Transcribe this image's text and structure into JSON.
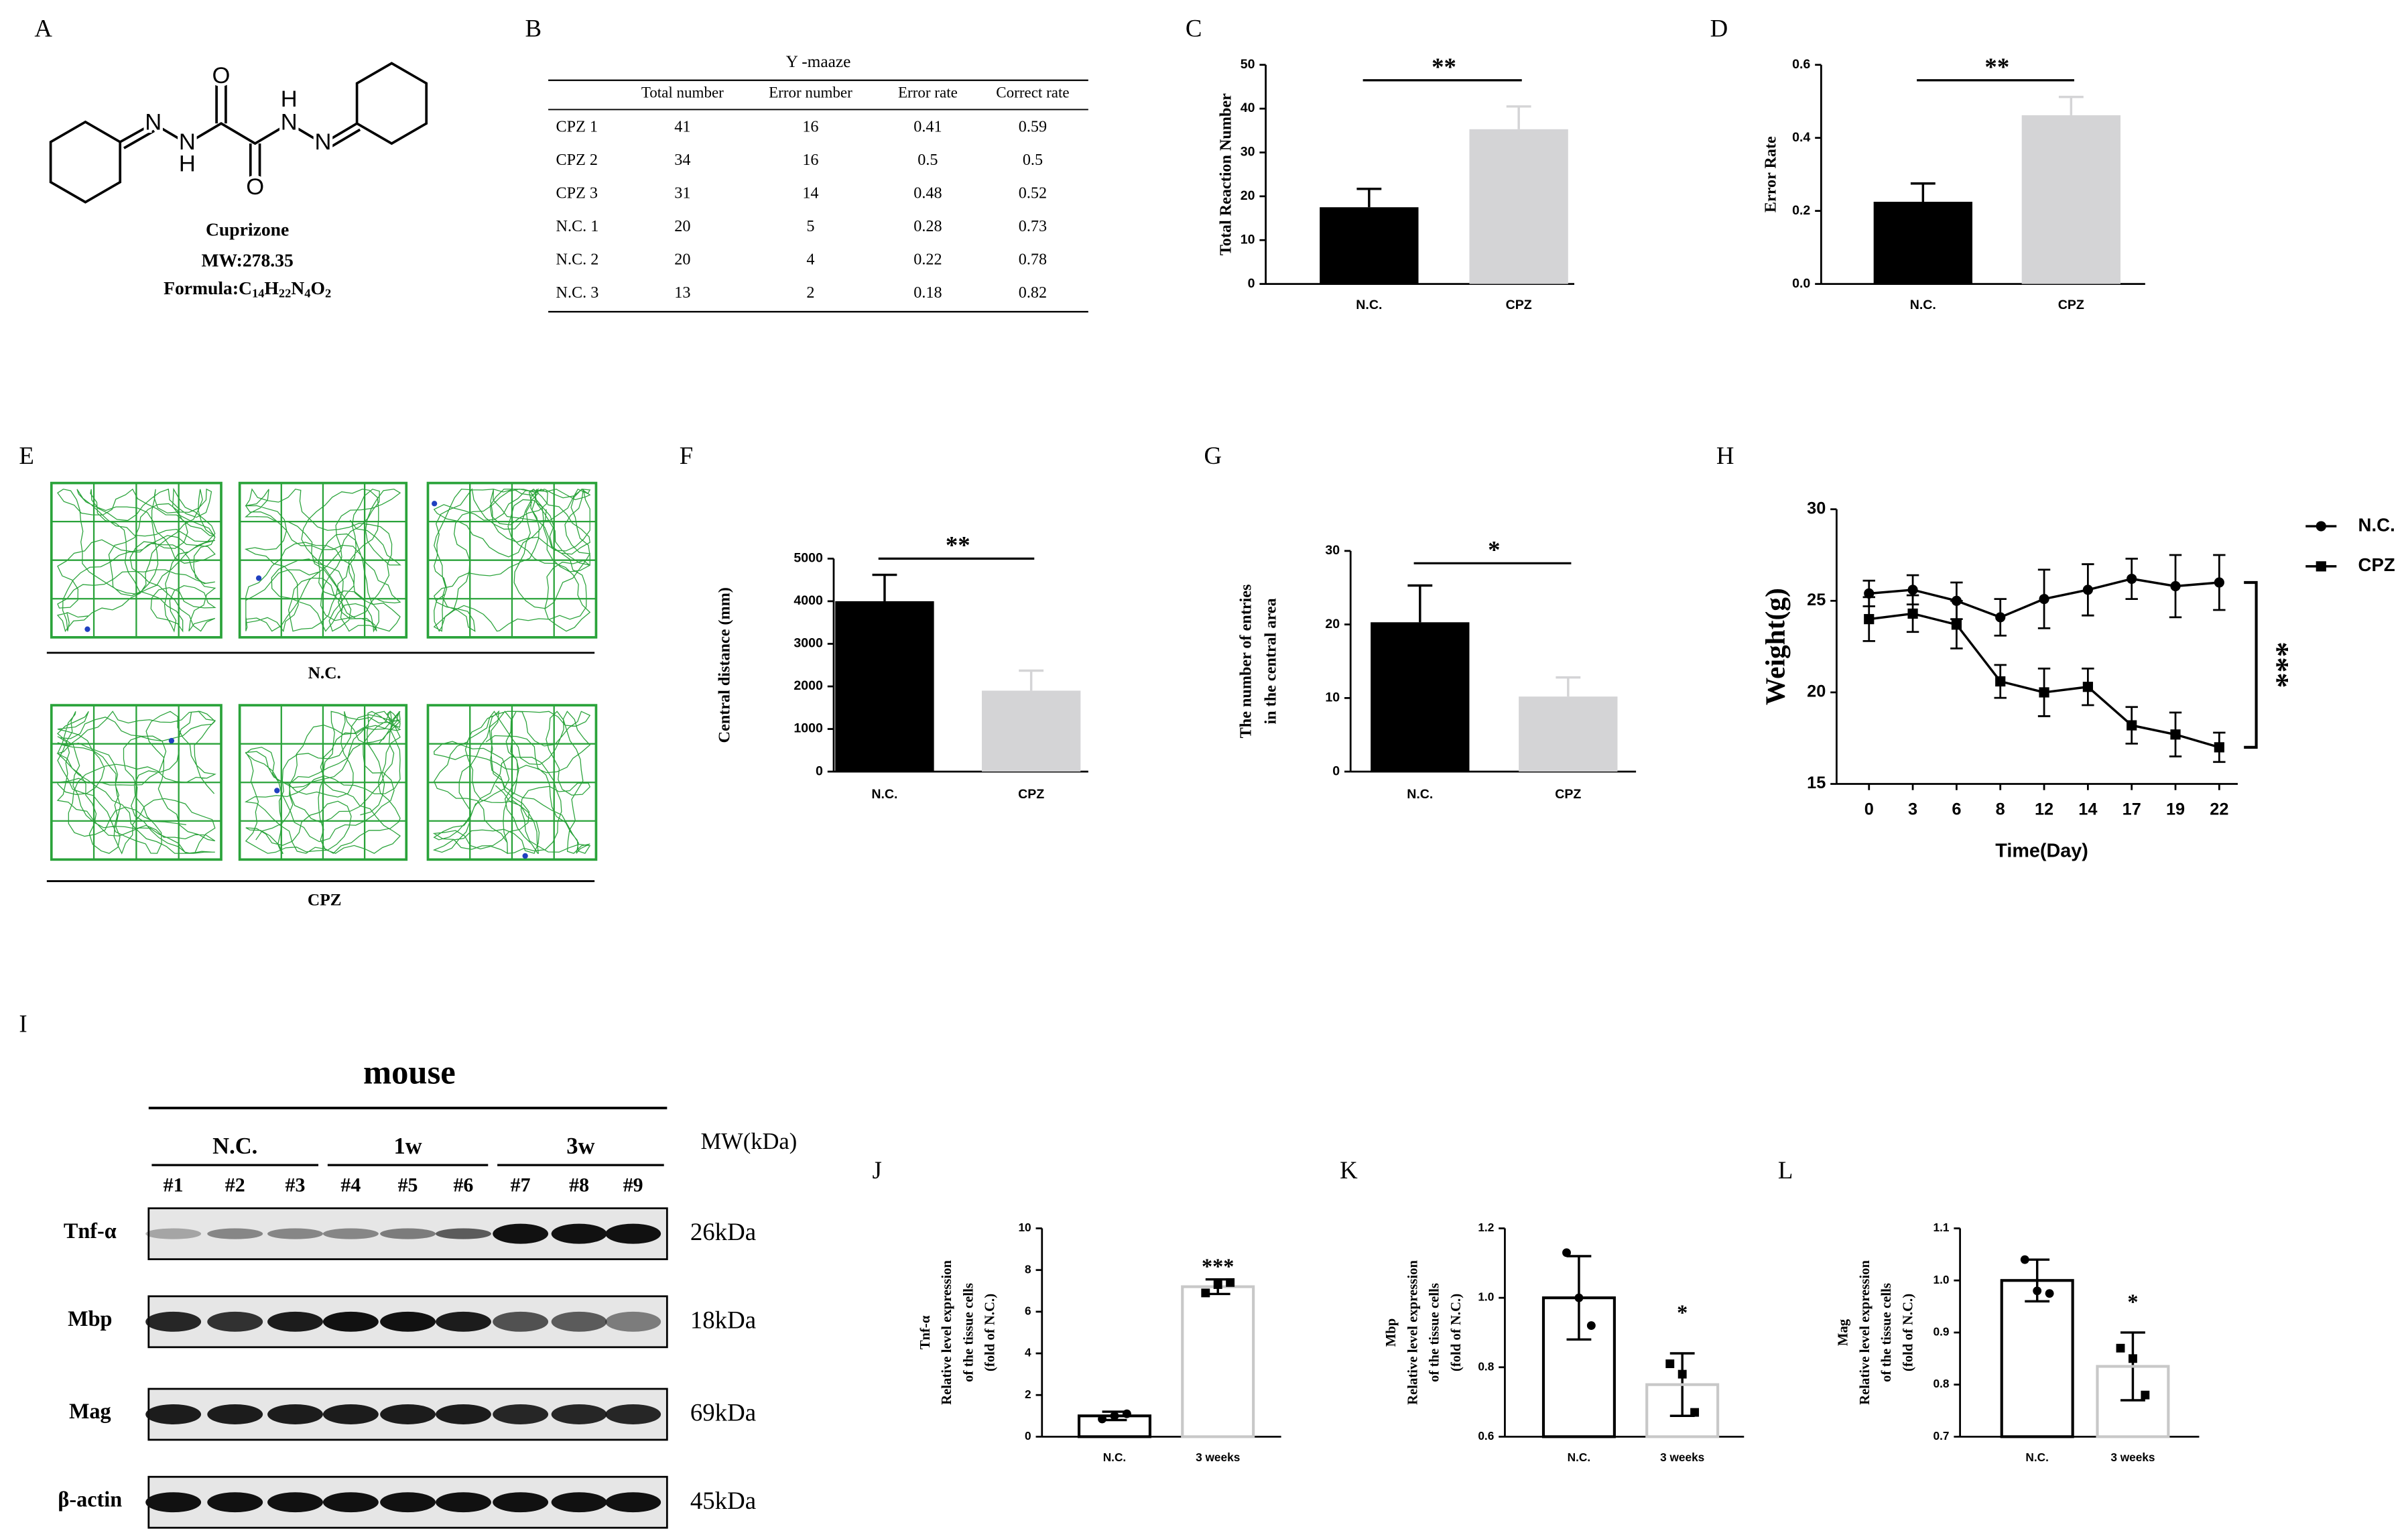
{
  "molecule": {
    "panel": "A",
    "atoms": [
      "O",
      "O",
      "N",
      "N",
      "H",
      "N",
      "H",
      "N"
    ],
    "name": "Cuprizone",
    "mw": "MW:278.35",
    "formula_prefix": "Formula:",
    "formula": [
      {
        "el": "C",
        "n": "14"
      },
      {
        "el": "H",
        "n": "22"
      },
      {
        "el": "N",
        "n": "4"
      },
      {
        "el": "O",
        "n": "2"
      }
    ]
  },
  "table": {
    "panel": "B",
    "title": "Y -maaze",
    "columns": [
      "Total number",
      "Error number",
      "Error rate",
      "Correct rate"
    ],
    "rows": [
      [
        "CPZ 1",
        41,
        16,
        0.41,
        0.59
      ],
      [
        "CPZ 2",
        34,
        16,
        0.5,
        0.5
      ],
      [
        "CPZ 3",
        31,
        14,
        0.48,
        0.52
      ],
      [
        "N.C. 1",
        20,
        5,
        0.28,
        0.73
      ],
      [
        "N.C. 2",
        20,
        4,
        0.22,
        0.78
      ],
      [
        "N.C. 3",
        13,
        2,
        0.18,
        0.82
      ]
    ]
  },
  "maze": {
    "panel": "E",
    "groups": [
      "N.C.",
      "CPZ"
    ]
  },
  "blot": {
    "panel": "I",
    "title": "mouse",
    "groups": [
      "N.C.",
      "1w",
      "3w"
    ],
    "lanes": [
      "#1",
      "#2",
      "#3",
      "#4",
      "#5",
      "#6",
      "#7",
      "#8",
      "#9"
    ],
    "mw_header": "MW(kDa)",
    "rows": [
      {
        "name": "Tnf-α",
        "mw": "26kDa"
      },
      {
        "name": "Mbp",
        "mw": "18kDa"
      },
      {
        "name": "Mag",
        "mw": "69kDa"
      },
      {
        "name": "β-actin",
        "mw": "45kDa"
      }
    ]
  },
  "chart_data": [
    {
      "type": "bar",
      "panel": "C",
      "categories": [
        "N.C.",
        "CPZ"
      ],
      "values": [
        17.5,
        35.3
      ],
      "errors": [
        4.2,
        5.2
      ],
      "colors": [
        "#000000",
        "#d4d4d6"
      ],
      "ylim": [
        0,
        50
      ],
      "yticks": [
        0,
        10,
        20,
        30,
        40,
        50
      ],
      "ylabel": [
        "Total Reaction Number"
      ],
      "annotation": "**"
    },
    {
      "type": "bar",
      "panel": "D",
      "categories": [
        "N.C.",
        "CPZ"
      ],
      "values": [
        0.225,
        0.462
      ],
      "errors": [
        0.05,
        0.05
      ],
      "colors": [
        "#000000",
        "#d4d4d6"
      ],
      "ylim": [
        0,
        0.6
      ],
      "yticks": [
        {
          "value": 0,
          "label": "0.0"
        },
        0.2,
        0.4,
        0.6
      ],
      "ylabel": [
        "Error Rate"
      ],
      "annotation": "**"
    },
    {
      "type": "bar",
      "panel": "F",
      "categories": [
        "N.C.",
        "CPZ"
      ],
      "values": [
        4000,
        1900
      ],
      "errors": [
        620,
        470
      ],
      "colors": [
        "#000000",
        "#d4d4d6"
      ],
      "ylim": [
        0,
        5000
      ],
      "yticks": [
        0,
        1000,
        2000,
        3000,
        4000,
        5000
      ],
      "ylabel": [
        "Central distance (mm)"
      ],
      "annotation": "**"
    },
    {
      "type": "bar",
      "panel": "G",
      "categories": [
        "N.C.",
        "CPZ"
      ],
      "values": [
        20.3,
        10.2
      ],
      "errors": [
        5,
        2.6
      ],
      "colors": [
        "#000000",
        "#d4d4d6"
      ],
      "ylim": [
        0,
        30
      ],
      "yticks": [
        0,
        10,
        20,
        30
      ],
      "ylabel": [
        "The number of entries",
        "in the central area"
      ],
      "annotation": "*"
    },
    {
      "type": "line",
      "panel": "H",
      "categories": [
        "0",
        "3",
        "6",
        "8",
        "12",
        "14",
        "17",
        "19",
        "22"
      ],
      "series": [
        {
          "name": "N.C.",
          "color": "#000000",
          "marker": "circle",
          "values": [
            25.4,
            25.6,
            25.0,
            24.1,
            25.1,
            25.6,
            26.2,
            25.8,
            26.0
          ],
          "errors": [
            0.7,
            0.8,
            1.0,
            1.0,
            1.6,
            1.4,
            1.1,
            1.7,
            1.5
          ]
        },
        {
          "name": "CPZ",
          "color": "#000000",
          "marker": "square",
          "values": [
            24.0,
            24.3,
            23.7,
            20.6,
            20.0,
            20.3,
            18.2,
            17.7,
            17.0
          ],
          "errors": [
            1.2,
            1.0,
            1.3,
            0.9,
            1.3,
            1.0,
            1.0,
            1.2,
            0.8
          ]
        }
      ],
      "ylim": [
        15,
        30
      ],
      "yticks": [
        15,
        20,
        25,
        30
      ],
      "xlabel": "Time(Day)",
      "ylabel": [
        "Weight(g)"
      ],
      "annotation": "***",
      "legend": "right"
    },
    {
      "type": "bar",
      "panel": "J",
      "categories": [
        "N.C.",
        "3 weeks"
      ],
      "values": [
        1.0,
        7.2
      ],
      "errors": [
        0.2,
        0.35
      ],
      "colors": [
        "#000000",
        "#c8c8c8"
      ],
      "points": [
        [
          0.85,
          1.0,
          1.1
        ],
        [
          6.9,
          7.3,
          7.4
        ]
      ],
      "ylim": [
        0,
        10
      ],
      "yticks": [
        0,
        2,
        4,
        6,
        8,
        10
      ],
      "ylabel": [
        "Tnf-α",
        "Relative level expression",
        "of the tissue cells",
        "(fold of N.C.)"
      ],
      "annotation": "***"
    },
    {
      "type": "bar",
      "panel": "K",
      "categories": [
        "N.C.",
        "3 weeks"
      ],
      "values": [
        1.0,
        0.75
      ],
      "errors": [
        0.12,
        0.09
      ],
      "colors": [
        "#000000",
        "#c8c8c8"
      ],
      "points": [
        [
          1.13,
          1.0,
          0.92
        ],
        [
          0.81,
          0.78,
          0.67
        ]
      ],
      "ylim": [
        0.6,
        1.2
      ],
      "yticks": [
        0.6,
        0.8,
        {
          "value": 1,
          "label": "1.0"
        },
        1.2
      ],
      "ylabel": [
        "Mbp",
        "Relative level expression",
        "of the tissue cells",
        "(fold of N.C.)"
      ],
      "annotation": "*"
    },
    {
      "type": "bar",
      "panel": "L",
      "categories": [
        "N.C.",
        "3 weeks"
      ],
      "values": [
        1.0,
        0.835
      ],
      "errors": [
        0.04,
        0.065
      ],
      "colors": [
        "#000000",
        "#c8c8c8"
      ],
      "points": [
        [
          1.04,
          0.98,
          0.975
        ],
        [
          0.87,
          0.85,
          0.78
        ]
      ],
      "ylim": [
        0.7,
        1.1
      ],
      "yticks": [
        0.7,
        0.8,
        0.9,
        {
          "value": 1,
          "label": "1.0"
        },
        1.1
      ],
      "ylabel": [
        "Mag",
        "Relative level expression",
        "of the tissue cells",
        "(fold of N.C.)"
      ],
      "annotation": "*"
    }
  ]
}
